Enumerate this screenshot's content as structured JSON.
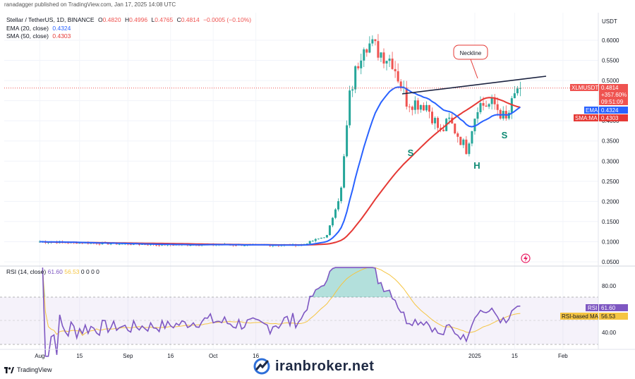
{
  "header": {
    "publisher": "ranadagger published on TradingView.com, Jan 17, 2025 14:08 UTC",
    "symbol_line": "Stellar / TetherUS, 1D, BINANCE",
    "ohlc": {
      "o_label": "O",
      "o": "0.4820",
      "h_label": "H",
      "h": "0.4996",
      "l_label": "L",
      "l": "0.4765",
      "c_label": "C",
      "c": "0.4814",
      "change": "−0.0005 (−0.10%)"
    },
    "ema_legend": {
      "label": "EMA (20, close)",
      "value": "0.4324"
    },
    "sma_legend": {
      "label": "SMA (50, close)",
      "value": "0.4303"
    }
  },
  "price_axis": {
    "currency": "USDT",
    "ticks": [
      "0.6000",
      "0.5500",
      "0.5000",
      "0.4500",
      "0.4000",
      "0.3500",
      "0.3000",
      "0.2500",
      "0.2000",
      "0.1500",
      "0.1000",
      "0.0500"
    ],
    "tick_values": [
      0.6,
      0.55,
      0.5,
      0.45,
      0.4,
      0.35,
      0.3,
      0.25,
      0.2,
      0.15,
      0.1,
      0.05
    ]
  },
  "price_labels": {
    "symbol": "XLMUSDT",
    "price": "0.4814",
    "change_pct": "+357.60%",
    "countdown": "09:51:09",
    "ema_tag": "EMA",
    "ema_value": "0.4324",
    "sma_tag": "SMA:MA",
    "sma_value": "0.4303"
  },
  "time_axis": {
    "labels": [
      "Aug",
      "15",
      "Sep",
      "16",
      "Oct",
      "16",
      "2025",
      "15",
      "Feb"
    ]
  },
  "annotations": {
    "neckline": "Neckline",
    "left_shoulder": "S",
    "head": "H",
    "right_shoulder": "S"
  },
  "rsi": {
    "legend_label": "RSI (14, close)",
    "rsi_value": "61.60",
    "ma_value": "56.53",
    "extra": "0 0 0 0",
    "ticks": [
      "80.00",
      "40.00"
    ],
    "tag_rsi": "RSI",
    "tag_ma": "RSI-based MA"
  },
  "footer": {
    "tradingview": "TradingView",
    "watermark": "iranbroker.net"
  },
  "colors": {
    "up": "#26a69a",
    "down": "#ef5350",
    "ema": "#2962ff",
    "sma": "#e53935",
    "rsi": "#7e57c2",
    "rsi_ma": "#f5c542",
    "neckline": "#1c2340",
    "annotation_green": "#0e8a74"
  },
  "chart_data": {
    "type": "candlestick",
    "title": "Stellar / TetherUS, 1D, BINANCE",
    "series": [
      {
        "name": "XLMUSDT",
        "close_by_date": [
          [
            "2024-08-01",
            0.1
          ],
          [
            "2024-08-15",
            0.097
          ],
          [
            "2024-09-01",
            0.094
          ],
          [
            "2024-09-16",
            0.092
          ],
          [
            "2024-10-01",
            0.093
          ],
          [
            "2024-10-16",
            0.091
          ],
          [
            "2024-11-01",
            0.092
          ],
          [
            "2024-11-10",
            0.115
          ],
          [
            "2024-11-15",
            0.23
          ],
          [
            "2024-11-18",
            0.46
          ],
          [
            "2024-11-20",
            0.52
          ],
          [
            "2024-11-23",
            0.6
          ],
          [
            "2024-12-03",
            0.55
          ],
          [
            "2024-12-08",
            0.45
          ],
          [
            "2024-12-15",
            0.44
          ],
          [
            "2024-12-20",
            0.37
          ],
          [
            "2024-12-23",
            0.4
          ],
          [
            "2024-12-29",
            0.33
          ],
          [
            "2025-01-02",
            0.44
          ],
          [
            "2025-01-08",
            0.44
          ],
          [
            "2025-01-12",
            0.4
          ],
          [
            "2025-01-14",
            0.44
          ],
          [
            "2025-01-16",
            0.482
          ],
          [
            "2025-01-17",
            0.481
          ]
        ]
      },
      {
        "name": "EMA (20, close)",
        "last": 0.4324
      },
      {
        "name": "SMA (50, close)",
        "last": 0.4303
      }
    ],
    "ylim": [
      0.035,
      0.64
    ],
    "grid": true,
    "rsi": {
      "period": 14,
      "last": 61.6,
      "ma_last": 56.53,
      "band": [
        30,
        70
      ]
    }
  }
}
